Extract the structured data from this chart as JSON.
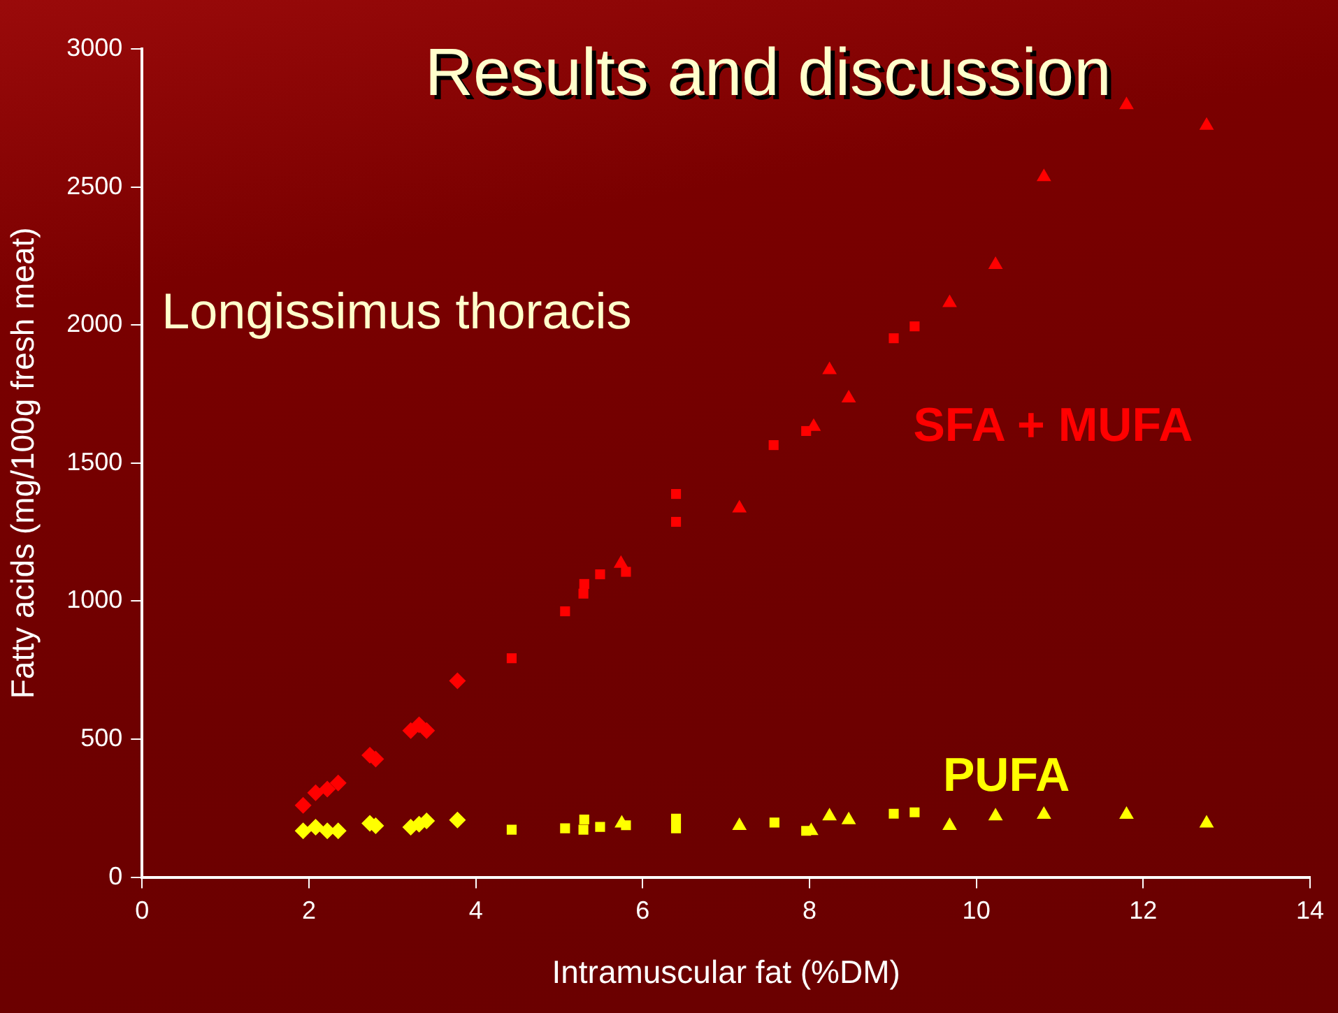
{
  "chart_data": {
    "type": "scatter",
    "title": "Results and discussion",
    "xlabel": "Intramuscular fat (%DM)",
    "ylabel": "Fatty acids (mg/100g fresh meat)",
    "xlim": [
      0,
      14
    ],
    "xticks": [
      0,
      2,
      4,
      6,
      8,
      10,
      12,
      14
    ],
    "ylim": [
      0,
      3000
    ],
    "yticks": [
      0,
      500,
      1000,
      1500,
      2000,
      2500,
      3000
    ],
    "grid": false,
    "legend": false,
    "annotations": [
      "Longissimus thoracis",
      "SFA + MUFA",
      "PUFA"
    ],
    "series": [
      {
        "color": "#ff0000",
        "marker": "diamond",
        "x": [
          1.93,
          2.08,
          2.22,
          2.35,
          2.73,
          2.8,
          3.22,
          3.32,
          3.41,
          3.78
        ],
        "values": [
          260,
          306,
          319,
          341,
          442,
          428,
          531,
          552,
          531,
          711
        ]
      },
      {
        "color": "#ff0000",
        "marker": "square",
        "x": [
          4.43,
          5.07,
          5.29,
          5.3,
          5.49,
          5.8,
          6.4,
          6.4,
          7.57,
          7.96,
          9.01,
          9.26
        ],
        "values": [
          793,
          963,
          1027,
          1062,
          1097,
          1106,
          1388,
          1287,
          1565,
          1616,
          1952,
          1995
        ]
      },
      {
        "color": "#ff0000",
        "marker": "triangle",
        "x": [
          5.74,
          7.16,
          8.05,
          8.24,
          8.47,
          9.68,
          10.23,
          10.81,
          11.8,
          12.76
        ],
        "values": [
          1136,
          1336,
          1632,
          1837,
          1735,
          2080,
          2218,
          2536,
          2797,
          2722
        ]
      },
      {
        "color": "#ffff00",
        "marker": "diamond",
        "x": [
          1.93,
          2.08,
          2.22,
          2.35,
          2.73,
          2.8,
          3.22,
          3.32,
          3.41,
          3.78
        ],
        "values": [
          168,
          181,
          168,
          168,
          195,
          186,
          181,
          192,
          204,
          207
        ]
      },
      {
        "color": "#ffff00",
        "marker": "square",
        "x": [
          4.43,
          5.07,
          5.29,
          5.3,
          5.49,
          5.8,
          6.4,
          6.4,
          7.58,
          7.96,
          9.01,
          9.26
        ],
        "values": [
          172,
          177,
          172,
          209,
          182,
          188,
          212,
          177,
          198,
          168,
          230,
          235
        ]
      },
      {
        "color": "#ffff00",
        "marker": "triangle",
        "x": [
          5.75,
          7.16,
          8.02,
          8.24,
          8.47,
          9.68,
          10.23,
          10.81,
          11.8,
          12.76
        ],
        "values": [
          195,
          186,
          168,
          221,
          207,
          186,
          221,
          227,
          227,
          195
        ]
      }
    ]
  }
}
